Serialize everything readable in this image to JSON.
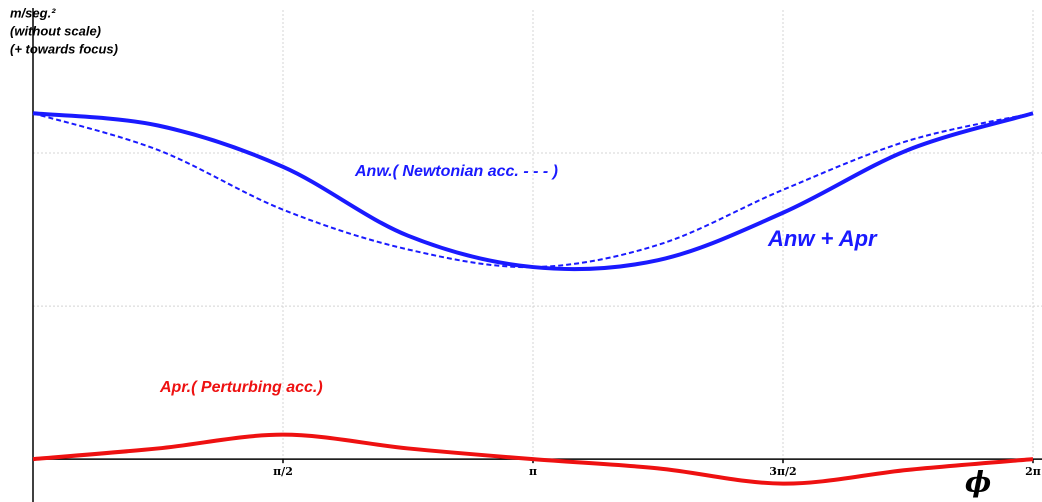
{
  "chart_data": {
    "type": "line",
    "y_label": [
      "m/seg.²",
      "(without scale)",
      "(+  towards focus)"
    ],
    "x_symbol": "ϕ",
    "x": [
      0,
      0.7854,
      1.5708,
      2.3562,
      3.1416,
      3.927,
      4.7124,
      5.4978,
      6.2832
    ],
    "xlim": [
      0,
      6.2832
    ],
    "ylim": [
      -0.28,
      3
    ],
    "xticks": [
      {
        "value": 1.5708,
        "label": "π/2"
      },
      {
        "value": 3.1416,
        "label": "π"
      },
      {
        "value": 4.7124,
        "label": "3π/2"
      },
      {
        "value": 6.2832,
        "label": "2π"
      }
    ],
    "yticks": [
      1,
      2
    ],
    "grid": true,
    "series": [
      {
        "name": "Anw + Apr",
        "color": "#1a1aff",
        "style": "solid",
        "values": [
          2.26,
          2.18,
          1.91,
          1.46,
          1.255,
          1.3,
          1.61,
          2.02,
          2.26
        ]
      },
      {
        "name": "Anw.( Newtonian acc.  - - - )",
        "color": "#1a1aff",
        "style": "dashed",
        "values": [
          2.26,
          2.02,
          1.63,
          1.37,
          1.255,
          1.4,
          1.76,
          2.08,
          2.26
        ]
      },
      {
        "name": "Apr.( Perturbing acc.)",
        "color": "#ee1111",
        "style": "solid",
        "values": [
          0,
          0.07,
          0.16,
          0.07,
          0,
          -0.06,
          -0.16,
          -0.07,
          0
        ]
      }
    ]
  }
}
